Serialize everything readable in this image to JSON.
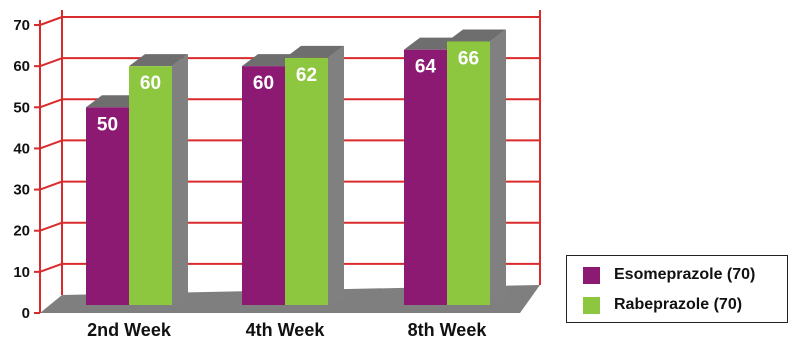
{
  "chart_data": {
    "type": "bar",
    "categories": [
      "2nd Week",
      "4th Week",
      "8th Week"
    ],
    "series": [
      {
        "name": "Esomeprazole (70)",
        "values": [
          50,
          60,
          64
        ],
        "color": "#8C1A73"
      },
      {
        "name": "Rabeprazole (70)",
        "values": [
          60,
          62,
          66
        ],
        "color": "#8DC63F"
      }
    ],
    "ylim": [
      0,
      70
    ],
    "yticks": [
      "0",
      "10",
      "20",
      "30",
      "40",
      "50",
      "60",
      "70"
    ],
    "grid": true,
    "grid_color": "#D92B2B",
    "legend_position": "bottom-right",
    "title": "",
    "xlabel": "",
    "ylabel": ""
  }
}
